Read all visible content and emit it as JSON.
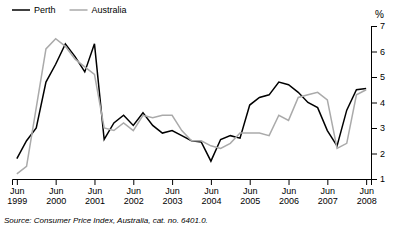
{
  "chart_data": {
    "type": "line",
    "y_label": "%",
    "annotations": [
      "Source: Consumer Price Index, Australia, cat. no. 6401.0."
    ],
    "categories": [
      "Jun\n1999",
      null,
      null,
      null,
      "Jun\n2000",
      null,
      null,
      null,
      "Jun\n2001",
      null,
      null,
      null,
      "Jun\n2002",
      null,
      null,
      null,
      "Jun\n2003",
      null,
      null,
      null,
      "Jun\n2004",
      null,
      null,
      null,
      "Jun\n2005",
      null,
      null,
      null,
      "Jun\n2006",
      null,
      null,
      null,
      "Jun\n2007",
      null,
      null,
      null,
      "Jun\n2008"
    ],
    "series": [
      {
        "name": "Perth",
        "color": "#000000",
        "values": [
          1.8,
          2.5,
          3.0,
          4.8,
          5.5,
          6.3,
          5.8,
          5.2,
          6.3,
          2.55,
          3.2,
          3.5,
          3.1,
          3.6,
          3.1,
          2.8,
          2.9,
          2.7,
          2.5,
          2.45,
          1.7,
          2.55,
          2.7,
          2.6,
          3.9,
          4.2,
          4.3,
          4.8,
          4.7,
          4.4,
          4.0,
          3.8,
          2.9,
          2.3,
          3.7,
          4.5,
          4.55
        ]
      },
      {
        "name": "Australia",
        "color": "#aaaaaa",
        "values": [
          1.2,
          1.5,
          3.8,
          6.1,
          6.5,
          6.2,
          5.7,
          5.4,
          5.1,
          3.0,
          2.9,
          3.2,
          2.9,
          3.5,
          3.4,
          3.5,
          3.5,
          2.9,
          2.5,
          2.5,
          2.3,
          2.2,
          2.4,
          2.8,
          2.8,
          2.8,
          2.7,
          3.5,
          3.3,
          4.2,
          4.3,
          4.4,
          4.1,
          2.2,
          2.4,
          4.3,
          4.5
        ]
      }
    ],
    "ylim": [
      1,
      7
    ],
    "yticks": [
      1,
      2,
      3,
      4,
      5,
      6,
      7
    ],
    "grid": false,
    "legend": "upper left"
  }
}
